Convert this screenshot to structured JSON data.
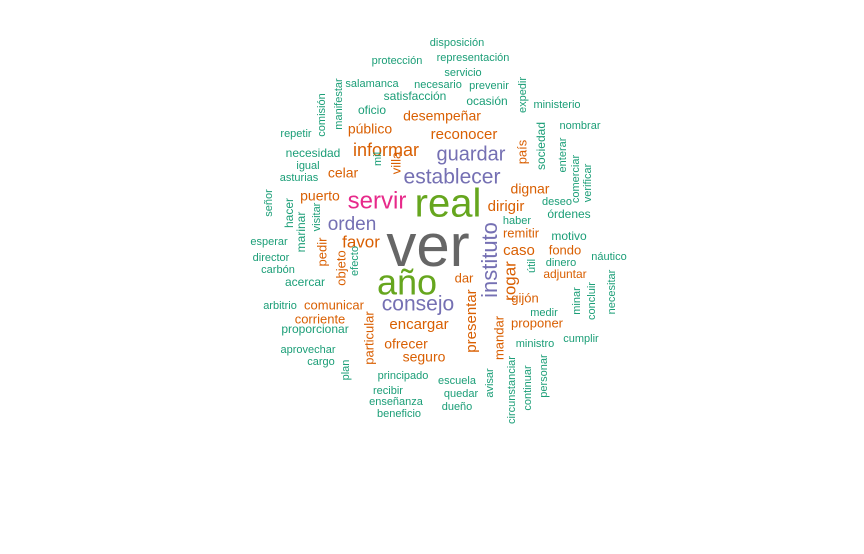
{
  "colors": {
    "teal": "#1b9e77",
    "orange": "#d95f02",
    "purple": "#7570b3",
    "magenta": "#e7298a",
    "green": "#66a61e",
    "gray": "#666666"
  },
  "words": [
    {
      "text": "ver",
      "color": "gray"
    },
    {
      "text": "real",
      "color": "green"
    },
    {
      "text": "año",
      "color": "green"
    },
    {
      "text": "servir",
      "color": "magenta"
    },
    {
      "text": "establecer",
      "color": "purple"
    },
    {
      "text": "consejo",
      "color": "purple"
    },
    {
      "text": "guardar",
      "color": "purple"
    },
    {
      "text": "orden",
      "color": "purple"
    },
    {
      "text": "instituto",
      "color": "purple"
    },
    {
      "text": "informar",
      "color": "orange"
    },
    {
      "text": "favor",
      "color": "orange"
    },
    {
      "text": "reconocer",
      "color": "orange"
    },
    {
      "text": "encargar",
      "color": "orange"
    },
    {
      "text": "rogar",
      "color": "orange"
    },
    {
      "text": "presentar",
      "color": "orange"
    },
    {
      "text": "dirigir",
      "color": "orange"
    },
    {
      "text": "caso",
      "color": "orange"
    },
    {
      "text": "desempeñar",
      "color": "orange"
    },
    {
      "text": "público",
      "color": "orange"
    },
    {
      "text": "celar",
      "color": "orange"
    },
    {
      "text": "puerto",
      "color": "orange"
    },
    {
      "text": "dignar",
      "color": "orange"
    },
    {
      "text": "remitir",
      "color": "orange"
    },
    {
      "text": "comunicar",
      "color": "orange"
    },
    {
      "text": "ofrecer",
      "color": "orange"
    },
    {
      "text": "seguro",
      "color": "orange"
    },
    {
      "text": "corriente",
      "color": "orange"
    },
    {
      "text": "proponer",
      "color": "orange"
    },
    {
      "text": "gijón",
      "color": "orange"
    },
    {
      "text": "adjuntar",
      "color": "orange"
    },
    {
      "text": "dar",
      "color": "orange"
    },
    {
      "text": "fondo",
      "color": "orange"
    },
    {
      "text": "país",
      "color": "orange"
    },
    {
      "text": "objeto",
      "color": "orange"
    },
    {
      "text": "pedir",
      "color": "orange"
    },
    {
      "text": "particular",
      "color": "orange"
    },
    {
      "text": "mandar",
      "color": "orange"
    },
    {
      "text": "villa",
      "color": "orange"
    },
    {
      "text": "proporcionar",
      "color": "teal"
    },
    {
      "text": "disposición",
      "color": "teal"
    },
    {
      "text": "representación",
      "color": "teal"
    },
    {
      "text": "protección",
      "color": "teal"
    },
    {
      "text": "servicio",
      "color": "teal"
    },
    {
      "text": "salamanca",
      "color": "teal"
    },
    {
      "text": "necesario",
      "color": "teal"
    },
    {
      "text": "prevenir",
      "color": "teal"
    },
    {
      "text": "satisfacción",
      "color": "teal"
    },
    {
      "text": "ocasión",
      "color": "teal"
    },
    {
      "text": "ministerio",
      "color": "teal"
    },
    {
      "text": "oficio",
      "color": "teal"
    },
    {
      "text": "nombrar",
      "color": "teal"
    },
    {
      "text": "repetir",
      "color": "teal"
    },
    {
      "text": "necesidad",
      "color": "teal"
    },
    {
      "text": "igual",
      "color": "teal"
    },
    {
      "text": "asturias",
      "color": "teal"
    },
    {
      "text": "señor",
      "color": "teal"
    },
    {
      "text": "hacer",
      "color": "teal"
    },
    {
      "text": "marinar",
      "color": "teal"
    },
    {
      "text": "visitar",
      "color": "teal"
    },
    {
      "text": "esperar",
      "color": "teal"
    },
    {
      "text": "director",
      "color": "teal"
    },
    {
      "text": "carbón",
      "color": "teal"
    },
    {
      "text": "acercar",
      "color": "teal"
    },
    {
      "text": "efecto",
      "color": "teal"
    },
    {
      "text": "arbitrio",
      "color": "teal"
    },
    {
      "text": "aprovechar",
      "color": "teal"
    },
    {
      "text": "cargo",
      "color": "teal"
    },
    {
      "text": "plan",
      "color": "teal"
    },
    {
      "text": "principado",
      "color": "teal"
    },
    {
      "text": "recibir",
      "color": "teal"
    },
    {
      "text": "enseñanza",
      "color": "teal"
    },
    {
      "text": "beneficio",
      "color": "teal"
    },
    {
      "text": "quedar",
      "color": "teal"
    },
    {
      "text": "dueño",
      "color": "teal"
    },
    {
      "text": "escuela",
      "color": "teal"
    },
    {
      "text": "avisar",
      "color": "teal"
    },
    {
      "text": "circunstanciar",
      "color": "teal"
    },
    {
      "text": "continuar",
      "color": "teal"
    },
    {
      "text": "personar",
      "color": "teal"
    },
    {
      "text": "ministro",
      "color": "teal"
    },
    {
      "text": "cumplir",
      "color": "teal"
    },
    {
      "text": "medir",
      "color": "teal"
    },
    {
      "text": "concluir",
      "color": "teal"
    },
    {
      "text": "minar",
      "color": "teal"
    },
    {
      "text": "necesitar",
      "color": "teal"
    },
    {
      "text": "náutico",
      "color": "teal"
    },
    {
      "text": "dinero",
      "color": "teal"
    },
    {
      "text": "útil",
      "color": "teal"
    },
    {
      "text": "motivo",
      "color": "teal"
    },
    {
      "text": "haber",
      "color": "teal"
    },
    {
      "text": "órdenes",
      "color": "teal"
    },
    {
      "text": "deseo",
      "color": "teal"
    },
    {
      "text": "comerciar",
      "color": "teal"
    },
    {
      "text": "verificar",
      "color": "teal"
    },
    {
      "text": "enterar",
      "color": "teal"
    },
    {
      "text": "sociedad",
      "color": "teal"
    },
    {
      "text": "expedir",
      "color": "teal"
    },
    {
      "text": "manifestar",
      "color": "teal"
    },
    {
      "text": "comisión",
      "color": "teal"
    },
    {
      "text": "mil",
      "color": "teal"
    }
  ]
}
